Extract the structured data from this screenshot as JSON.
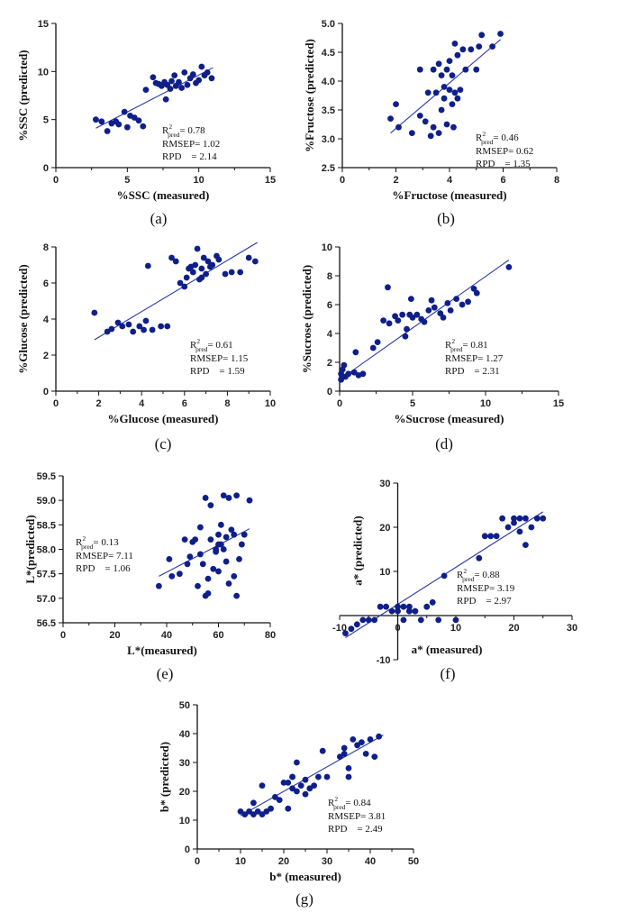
{
  "figure": {
    "colors": {
      "point": "#0f1f8a",
      "fit_line": "#2a37a8",
      "axis": "#111111"
    }
  },
  "chart_data": [
    {
      "id": "a",
      "type": "scatter",
      "caption": "(a)",
      "xlabel": "%SSC (measured)",
      "ylabel": "%SSC (predicted)",
      "xlim": [
        0,
        15
      ],
      "ylim": [
        0,
        15
      ],
      "xticks": [
        "0",
        "5",
        "10",
        "15"
      ],
      "yticks": [
        "0",
        "5",
        "10",
        "15"
      ],
      "fit_line": {
        "x": [
          2.8,
          11.0
        ],
        "y": [
          4.1,
          10.4
        ]
      },
      "stats": {
        "r2_label": "R",
        "r2_sup": "2",
        "r2_sub": "pred",
        "r2_value": "= 0.78",
        "rmsep": "RMSEP= 1.02",
        "rpd": "RPD    = 2.14"
      },
      "points": [
        [
          2.8,
          5.0
        ],
        [
          3.2,
          4.8
        ],
        [
          3.6,
          3.8
        ],
        [
          3.9,
          4.6
        ],
        [
          4.2,
          4.8
        ],
        [
          4.4,
          4.5
        ],
        [
          4.8,
          5.8
        ],
        [
          5.0,
          4.2
        ],
        [
          5.2,
          5.4
        ],
        [
          5.5,
          5.2
        ],
        [
          5.8,
          4.9
        ],
        [
          6.1,
          4.3
        ],
        [
          6.3,
          8.1
        ],
        [
          6.8,
          9.4
        ],
        [
          7.0,
          8.8
        ],
        [
          7.2,
          8.7
        ],
        [
          7.4,
          8.5
        ],
        [
          7.6,
          8.9
        ],
        [
          7.7,
          7.1
        ],
        [
          7.8,
          8.6
        ],
        [
          8.0,
          8.2
        ],
        [
          8.1,
          9.0
        ],
        [
          8.3,
          9.6
        ],
        [
          8.4,
          8.5
        ],
        [
          8.6,
          8.9
        ],
        [
          8.8,
          8.3
        ],
        [
          9.0,
          9.9
        ],
        [
          9.2,
          8.6
        ],
        [
          9.4,
          9.3
        ],
        [
          9.6,
          9.7
        ],
        [
          9.8,
          8.8
        ],
        [
          10.0,
          9.1
        ],
        [
          10.2,
          10.5
        ],
        [
          10.4,
          9.6
        ],
        [
          10.6,
          9.9
        ],
        [
          10.9,
          9.3
        ]
      ]
    },
    {
      "id": "b",
      "type": "scatter",
      "caption": "(b)",
      "xlabel": "%Fructose (measured)",
      "ylabel": "%Fructose (predicted)",
      "xlim": [
        0,
        8
      ],
      "ylim": [
        2.5,
        5.0
      ],
      "xticks": [
        "0",
        "2",
        "4",
        "6",
        "8"
      ],
      "yticks": [
        "2.5",
        "3.0",
        "3.5",
        "4.0",
        "4.5",
        "5.0"
      ],
      "fit_line": {
        "x": [
          1.8,
          5.9
        ],
        "y": [
          3.1,
          4.72
        ]
      },
      "stats": {
        "r2_label": "R",
        "r2_sup": "2",
        "r2_sub": "pred",
        "r2_value": "= 0.46",
        "rmsep": "RMSEP= 0.62",
        "rpd": "RPD    = 1.35"
      },
      "points": [
        [
          1.8,
          3.35
        ],
        [
          2.0,
          3.6
        ],
        [
          2.1,
          3.2
        ],
        [
          2.6,
          3.1
        ],
        [
          2.9,
          4.2
        ],
        [
          2.9,
          3.4
        ],
        [
          3.1,
          3.3
        ],
        [
          3.2,
          3.8
        ],
        [
          3.3,
          3.05
        ],
        [
          3.4,
          4.2
        ],
        [
          3.4,
          3.2
        ],
        [
          3.5,
          3.8
        ],
        [
          3.6,
          3.1
        ],
        [
          3.6,
          4.3
        ],
        [
          3.7,
          3.5
        ],
        [
          3.7,
          4.1
        ],
        [
          3.8,
          3.7
        ],
        [
          3.8,
          3.9
        ],
        [
          3.9,
          3.25
        ],
        [
          3.9,
          4.2
        ],
        [
          4.0,
          3.85
        ],
        [
          4.0,
          4.35
        ],
        [
          4.1,
          4.1
        ],
        [
          4.1,
          3.6
        ],
        [
          4.2,
          4.65
        ],
        [
          4.2,
          3.8
        ],
        [
          4.3,
          4.45
        ],
        [
          4.3,
          3.7
        ],
        [
          4.4,
          3.85
        ],
        [
          4.5,
          4.55
        ],
        [
          4.6,
          4.2
        ],
        [
          4.8,
          4.55
        ],
        [
          5.0,
          4.2
        ],
        [
          5.1,
          4.6
        ],
        [
          5.2,
          4.8
        ],
        [
          5.6,
          4.6
        ],
        [
          5.9,
          4.82
        ],
        [
          4.15,
          3.2
        ]
      ]
    },
    {
      "id": "c",
      "type": "scatter",
      "caption": "(c)",
      "xlabel": "%Glucose (measured)",
      "ylabel": "%Glucose (predicted)",
      "xlim": [
        0,
        10
      ],
      "ylim": [
        0,
        8
      ],
      "xticks": [
        "0",
        "2",
        "4",
        "6",
        "8",
        "10"
      ],
      "yticks": [
        "0",
        "2",
        "4",
        "6",
        "8"
      ],
      "fit_line": {
        "x": [
          1.8,
          9.4
        ],
        "y": [
          2.85,
          8.25
        ]
      },
      "stats": {
        "r2_label": "R",
        "r2_sup": "2",
        "r2_sub": "pred",
        "r2_value": "= 0.61",
        "rmsep": "RMSEP= 1.15",
        "rpd": "RPD    = 1.59"
      },
      "points": [
        [
          1.8,
          4.35
        ],
        [
          2.4,
          3.3
        ],
        [
          2.6,
          3.45
        ],
        [
          2.9,
          3.8
        ],
        [
          3.1,
          3.6
        ],
        [
          3.4,
          3.7
        ],
        [
          3.6,
          3.3
        ],
        [
          3.9,
          3.6
        ],
        [
          4.1,
          3.4
        ],
        [
          4.2,
          3.9
        ],
        [
          4.3,
          6.95
        ],
        [
          4.5,
          3.4
        ],
        [
          4.9,
          3.6
        ],
        [
          5.2,
          3.6
        ],
        [
          5.4,
          7.4
        ],
        [
          5.6,
          7.2
        ],
        [
          5.8,
          6.0
        ],
        [
          6.0,
          5.8
        ],
        [
          6.1,
          6.3
        ],
        [
          6.3,
          6.9
        ],
        [
          6.4,
          6.6
        ],
        [
          6.5,
          7.0
        ],
        [
          6.6,
          7.9
        ],
        [
          6.7,
          6.2
        ],
        [
          6.8,
          6.8
        ],
        [
          6.9,
          7.4
        ],
        [
          7.0,
          6.5
        ],
        [
          7.1,
          7.2
        ],
        [
          7.2,
          6.9
        ],
        [
          7.3,
          7.0
        ],
        [
          7.5,
          7.5
        ],
        [
          7.6,
          7.3
        ],
        [
          7.9,
          6.5
        ],
        [
          8.2,
          6.6
        ],
        [
          8.6,
          6.6
        ],
        [
          9.0,
          7.4
        ],
        [
          9.3,
          7.2
        ],
        [
          6.2,
          6.8
        ],
        [
          6.8,
          6.3
        ]
      ]
    },
    {
      "id": "d",
      "type": "scatter",
      "caption": "(d)",
      "xlabel": "%Sucrose (measured)",
      "ylabel": "%Sucrose (predicted)",
      "xlim": [
        0,
        15
      ],
      "ylim": [
        0,
        10
      ],
      "xticks": [
        "0",
        "5",
        "10",
        "15"
      ],
      "yticks": [
        "0",
        "2",
        "4",
        "6",
        "8",
        "10"
      ],
      "fit_line": {
        "x": [
          0,
          11.6
        ],
        "y": [
          0.8,
          9.1
        ]
      },
      "stats": {
        "r2_label": "R",
        "r2_sup": "2",
        "r2_sub": "pred",
        "r2_value": "= 0.81",
        "rmsep": "RMSEP= 1.27",
        "rpd": "RPD    = 2.31"
      },
      "points": [
        [
          0.1,
          0.8
        ],
        [
          0.2,
          1.5
        ],
        [
          0.3,
          1.8
        ],
        [
          0.4,
          1.0
        ],
        [
          0.6,
          1.2
        ],
        [
          1.0,
          1.3
        ],
        [
          1.1,
          2.7
        ],
        [
          1.3,
          1.1
        ],
        [
          1.6,
          1.2
        ],
        [
          2.3,
          3.0
        ],
        [
          2.6,
          3.4
        ],
        [
          3.0,
          4.9
        ],
        [
          3.3,
          7.2
        ],
        [
          3.4,
          4.7
        ],
        [
          3.8,
          5.2
        ],
        [
          4.0,
          4.9
        ],
        [
          4.3,
          5.3
        ],
        [
          4.5,
          3.8
        ],
        [
          4.6,
          4.3
        ],
        [
          4.8,
          5.3
        ],
        [
          4.9,
          6.4
        ],
        [
          5.0,
          5.1
        ],
        [
          5.3,
          5.3
        ],
        [
          5.6,
          5.0
        ],
        [
          5.8,
          4.8
        ],
        [
          6.1,
          5.6
        ],
        [
          6.3,
          6.3
        ],
        [
          6.5,
          5.8
        ],
        [
          6.9,
          5.4
        ],
        [
          7.1,
          5.1
        ],
        [
          7.4,
          6.1
        ],
        [
          7.6,
          5.6
        ],
        [
          8.0,
          6.4
        ],
        [
          8.4,
          6.0
        ],
        [
          8.8,
          6.2
        ],
        [
          9.2,
          7.1
        ],
        [
          9.4,
          6.8
        ],
        [
          11.6,
          8.6
        ],
        [
          0.1,
          1.2
        ]
      ]
    },
    {
      "id": "e",
      "type": "scatter",
      "caption": "(e)",
      "xlabel": "L*(measured)",
      "ylabel": "L*(predicted)",
      "xlim": [
        0,
        80
      ],
      "ylim": [
        56.5,
        59.5
      ],
      "xticks": [
        "0",
        "20",
        "40",
        "60",
        "80"
      ],
      "yticks": [
        "56.5",
        "57.0",
        "57.5",
        "58.0",
        "58.5",
        "59.0",
        "59.5"
      ],
      "fit_line": {
        "x": [
          37,
          72
        ],
        "y": [
          57.45,
          58.42
        ]
      },
      "stats": {
        "r2_label": "R",
        "r2_sup": "2",
        "r2_sub": "pred",
        "r2_value": "= 0.13",
        "rmsep": "RMSEP= 7.11",
        "rpd": "RPD    = 1.06"
      },
      "points": [
        [
          37,
          57.25
        ],
        [
          41,
          57.8
        ],
        [
          42,
          57.45
        ],
        [
          45,
          57.5
        ],
        [
          47,
          58.2
        ],
        [
          48,
          57.7
        ],
        [
          49,
          57.85
        ],
        [
          50,
          58.15
        ],
        [
          51,
          58.2
        ],
        [
          52,
          57.25
        ],
        [
          53,
          57.9
        ],
        [
          53,
          58.45
        ],
        [
          54,
          57.7
        ],
        [
          55,
          59.05
        ],
        [
          55,
          57.05
        ],
        [
          56,
          57.4
        ],
        [
          56,
          57.1
        ],
        [
          57,
          58.2
        ],
        [
          57,
          58.9
        ],
        [
          58,
          57.6
        ],
        [
          59,
          58.0
        ],
        [
          60,
          58.3
        ],
        [
          60,
          57.55
        ],
        [
          61,
          58.5
        ],
        [
          61,
          58.1
        ],
        [
          62,
          59.1
        ],
        [
          62,
          58.0
        ],
        [
          63,
          58.25
        ],
        [
          63,
          57.75
        ],
        [
          64,
          57.3
        ],
        [
          64,
          59.05
        ],
        [
          65,
          58.4
        ],
        [
          66,
          58.3
        ],
        [
          67,
          57.05
        ],
        [
          67,
          59.1
        ],
        [
          68,
          57.8
        ],
        [
          69,
          58.1
        ],
        [
          70,
          58.3
        ],
        [
          72,
          59.0
        ],
        [
          66,
          57.45
        ],
        [
          59,
          57.95
        ],
        [
          60,
          58.1
        ]
      ]
    },
    {
      "id": "f",
      "type": "scatter",
      "caption": "(f)",
      "xlabel": "a* (measured)",
      "ylabel": "a* (predicted)",
      "xlim": [
        -10,
        30
      ],
      "ylim": [
        -10,
        30
      ],
      "xticks": [
        "-10",
        "0",
        "10",
        "20",
        "30"
      ],
      "yticks": [
        "-10",
        "10",
        "20",
        "30"
      ],
      "fit_line": {
        "x": [
          -9,
          25
        ],
        "y": [
          -5,
          23.5
        ]
      },
      "stats": {
        "r2_label": "R",
        "r2_sup": "2",
        "r2_sub": "pred",
        "r2_value": "= 0.88",
        "rmsep": "RMSEP= 3.19",
        "rpd": "RPD    = 2.97"
      },
      "points": [
        [
          -9,
          -4
        ],
        [
          -8,
          -3
        ],
        [
          -7,
          -2
        ],
        [
          -6,
          -1
        ],
        [
          -5,
          -1
        ],
        [
          -4,
          -1
        ],
        [
          -3,
          2
        ],
        [
          -2,
          2
        ],
        [
          -1,
          1
        ],
        [
          0,
          2
        ],
        [
          0,
          1
        ],
        [
          1,
          2
        ],
        [
          1,
          -1
        ],
        [
          2,
          1
        ],
        [
          2,
          2
        ],
        [
          3,
          1
        ],
        [
          4,
          -1
        ],
        [
          5,
          2
        ],
        [
          6,
          3
        ],
        [
          7,
          -1
        ],
        [
          8,
          9
        ],
        [
          10,
          -1
        ],
        [
          14,
          13
        ],
        [
          15,
          18
        ],
        [
          16,
          18
        ],
        [
          17,
          18
        ],
        [
          18,
          22
        ],
        [
          19,
          20
        ],
        [
          20,
          21
        ],
        [
          20,
          22
        ],
        [
          21,
          19
        ],
        [
          21,
          22
        ],
        [
          22,
          16
        ],
        [
          22,
          22
        ],
        [
          23,
          20
        ],
        [
          24,
          22
        ],
        [
          25,
          22
        ],
        [
          2,
          1
        ],
        [
          3,
          1
        ]
      ]
    },
    {
      "id": "g",
      "type": "scatter",
      "caption": "(g)",
      "xlabel": "b* (measured)",
      "ylabel": "b* (predicted)",
      "xlim": [
        0,
        50
      ],
      "ylim": [
        0,
        50
      ],
      "xticks": [
        "0",
        "10",
        "20",
        "30",
        "40",
        "50"
      ],
      "yticks": [
        "0",
        "10",
        "20",
        "30",
        "40",
        "50"
      ],
      "fit_line": {
        "x": [
          10,
          43
        ],
        "y": [
          11.5,
          39.5
        ]
      },
      "stats": {
        "r2_label": "R",
        "r2_sup": "2",
        "r2_sub": "pred",
        "r2_value": "= 0.84",
        "rmsep": "RMSEP= 3.81",
        "rpd": "RPD    = 2.49"
      },
      "points": [
        [
          10,
          13
        ],
        [
          11,
          12
        ],
        [
          12,
          13
        ],
        [
          13,
          16
        ],
        [
          13,
          12
        ],
        [
          14,
          13
        ],
        [
          15,
          12
        ],
        [
          15,
          22
        ],
        [
          16,
          13
        ],
        [
          17,
          14
        ],
        [
          18,
          18
        ],
        [
          19,
          17
        ],
        [
          20,
          23
        ],
        [
          21,
          14
        ],
        [
          21,
          23
        ],
        [
          22,
          21
        ],
        [
          22,
          25
        ],
        [
          23,
          20
        ],
        [
          23,
          30
        ],
        [
          24,
          22
        ],
        [
          25,
          24
        ],
        [
          25,
          19
        ],
        [
          26,
          21
        ],
        [
          27,
          22
        ],
        [
          28,
          25
        ],
        [
          29,
          34
        ],
        [
          30,
          25
        ],
        [
          33,
          32
        ],
        [
          34,
          33
        ],
        [
          34,
          35
        ],
        [
          35,
          28
        ],
        [
          35,
          25
        ],
        [
          36,
          38
        ],
        [
          37,
          36
        ],
        [
          38,
          37
        ],
        [
          39,
          33
        ],
        [
          40,
          38
        ],
        [
          41,
          32
        ],
        [
          42,
          39
        ],
        [
          22,
          25
        ]
      ]
    }
  ]
}
